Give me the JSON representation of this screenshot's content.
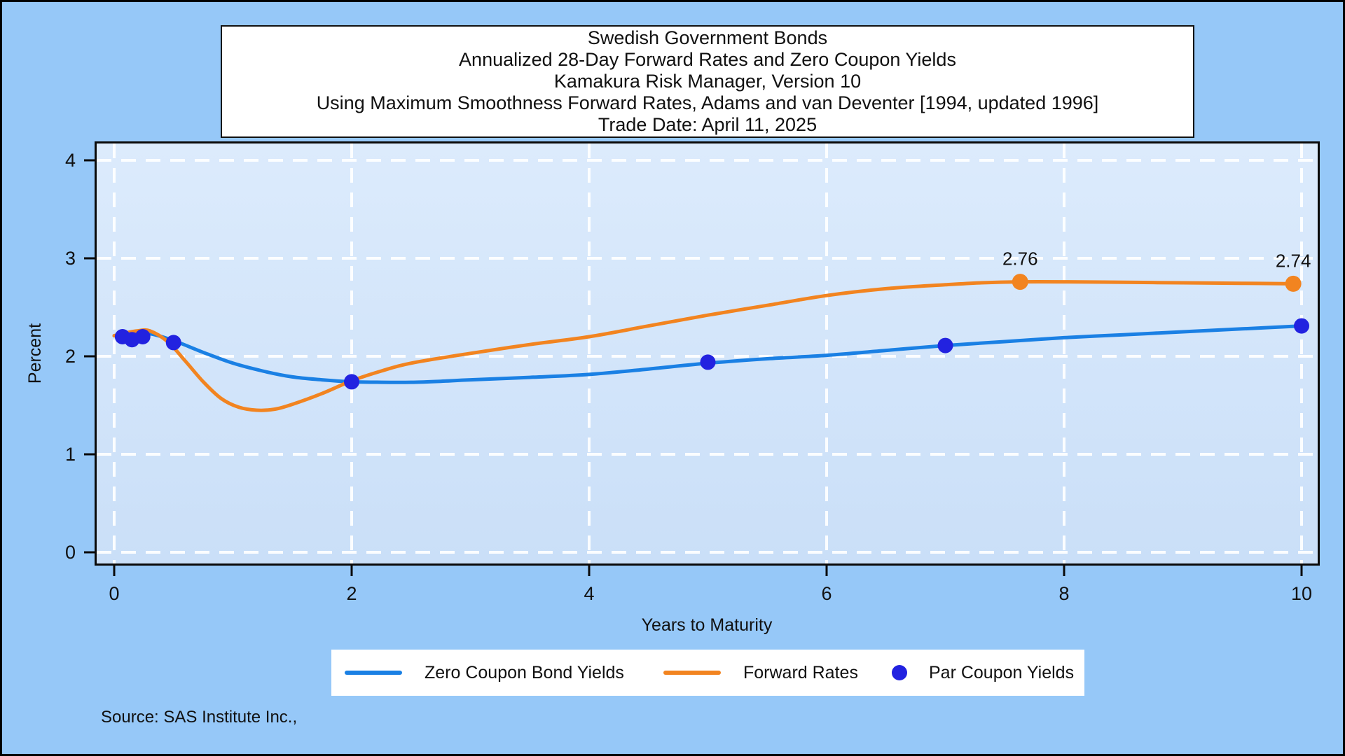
{
  "source_note": "Source: SAS Institute Inc.,",
  "colors": {
    "page_bg": "#96c8f8",
    "plot_wall_top": "#dcebfc",
    "plot_wall_bottom": "#cadff8",
    "gridline": "rgba(255,255,255,0.92)",
    "axis_line": "#0a0a0a",
    "zero_coupon_line": "#1a80e4",
    "forward_rate_line": "#f28420",
    "par_coupon_dot": "#2222e0",
    "legend_bg": "#ffffff",
    "title_box_bg": "#ffffff",
    "text": "#111111"
  },
  "chart_data": {
    "type": "line",
    "title_lines": [
      "Swedish Government Bonds",
      "Annualized 28-Day Forward Rates and Zero Coupon Yields",
      "Kamakura Risk Manager, Version 10",
      "Using Maximum Smoothness Forward Rates, Adams and van Deventer [1994, updated 1996]",
      "Trade Date: April 11, 2025"
    ],
    "xlabel": "Years to Maturity",
    "ylabel": "Percent",
    "x_ticks": [
      0,
      2,
      4,
      6,
      8,
      10
    ],
    "y_ticks": [
      0,
      1,
      2,
      3,
      4
    ],
    "xlim": [
      -0.15,
      10.14
    ],
    "ylim": [
      -0.11,
      4.17
    ],
    "grid": "white dashed, both axes at major ticks",
    "legend_position": "bottom-center",
    "series": [
      {
        "name": "Zero Coupon Bond Yields",
        "type": "line",
        "color": "#1a80e4",
        "x": [
          0,
          0.15,
          0.3,
          0.5,
          0.75,
          1,
          1.25,
          1.5,
          1.75,
          2,
          2.25,
          2.5,
          2.75,
          3,
          3.5,
          4,
          4.5,
          5,
          5.5,
          6,
          6.5,
          7,
          7.5,
          8,
          8.5,
          9,
          9.5,
          10
        ],
        "y": [
          2.21,
          2.22,
          2.23,
          2.16,
          2.04,
          1.93,
          1.85,
          1.79,
          1.76,
          1.74,
          1.735,
          1.735,
          1.745,
          1.76,
          1.785,
          1.815,
          1.87,
          1.93,
          1.975,
          2.01,
          2.06,
          2.11,
          2.15,
          2.19,
          2.22,
          2.25,
          2.28,
          2.31
        ]
      },
      {
        "name": "Forward Rates",
        "type": "line",
        "color": "#f28420",
        "x": [
          0,
          0.1,
          0.2,
          0.3,
          0.45,
          0.6,
          0.75,
          0.9,
          1.05,
          1.2,
          1.35,
          1.5,
          1.75,
          2,
          2.25,
          2.5,
          3,
          3.5,
          4,
          4.5,
          5,
          5.5,
          6,
          6.5,
          7,
          7.3,
          7.63,
          8,
          8.5,
          9,
          9.5,
          9.93
        ],
        "y": [
          2.21,
          2.24,
          2.26,
          2.26,
          2.15,
          1.95,
          1.74,
          1.57,
          1.48,
          1.45,
          1.46,
          1.51,
          1.62,
          1.75,
          1.85,
          1.93,
          2.03,
          2.12,
          2.2,
          2.31,
          2.42,
          2.52,
          2.62,
          2.69,
          2.73,
          2.75,
          2.76,
          2.76,
          2.755,
          2.75,
          2.745,
          2.74
        ]
      },
      {
        "name": "Par Coupon Yields",
        "type": "scatter",
        "color": "#2222e0",
        "x": [
          0.07,
          0.15,
          0.24,
          0.5,
          2,
          5,
          7,
          10
        ],
        "y": [
          2.2,
          2.17,
          2.2,
          2.14,
          1.74,
          1.94,
          2.11,
          2.31
        ]
      }
    ],
    "annotations": [
      {
        "series": "Forward Rates",
        "x": 7.63,
        "y": 2.76,
        "label": "2.76"
      },
      {
        "series": "Forward Rates",
        "x": 9.93,
        "y": 2.74,
        "label": "2.74"
      }
    ]
  }
}
